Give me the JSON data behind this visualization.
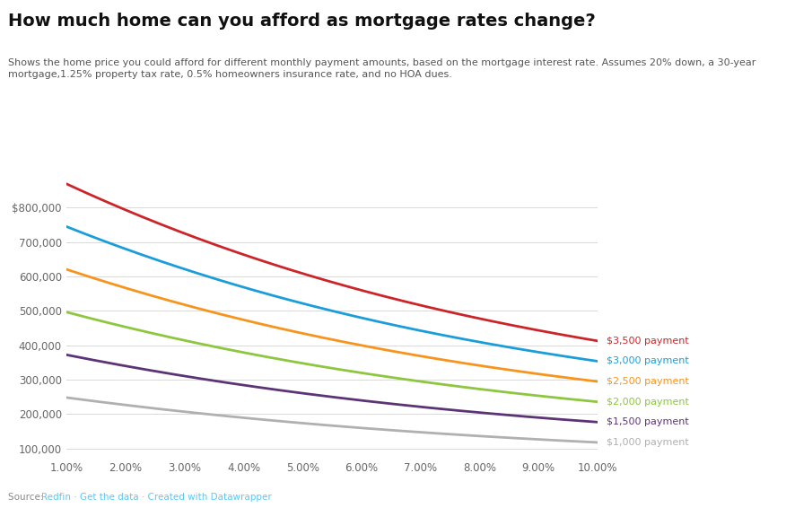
{
  "title": "How much home can you afford as mortgage rates change?",
  "subtitle": "Shows the home price you could afford for different monthly payment amounts, based on the mortgage interest rate. Assumes 20% down, a 30-year\nmortgage,1.25% property tax rate, 0.5% homeowners insurance rate, and no HOA dues.",
  "source_prefix": "Source: ",
  "source_link": "Redfin · Get the data · Created with Datawrapper",
  "source_color": "#5bc8f5",
  "rates": [
    1.0,
    2.0,
    3.0,
    4.0,
    5.0,
    6.0,
    7.0,
    8.0,
    9.0,
    10.0
  ],
  "payments": [
    1000,
    1500,
    2000,
    2500,
    3000,
    3500
  ],
  "series_colors": [
    "#b0b0b0",
    "#5c3475",
    "#8dc63f",
    "#f7941d",
    "#1b9dd9",
    "#cc2529"
  ],
  "series_labels": [
    "$1,000 payment",
    "$1,500 payment",
    "$2,000 payment",
    "$2,500 payment",
    "$3,000 payment",
    "$3,500 payment"
  ],
  "label_colors": [
    "#b0b0b0",
    "#5c3475",
    "#8dc63f",
    "#f7941d",
    "#1b9dd9",
    "#cc2529"
  ],
  "ytick_values": [
    100000,
    200000,
    300000,
    400000,
    500000,
    600000,
    700000,
    800000
  ],
  "ytick_labels": [
    "100,000",
    "200,000",
    "300,000",
    "400,000",
    "500,000",
    "600,000",
    "700,000",
    "$800,000"
  ],
  "ylim": [
    75000,
    960000
  ],
  "background_color": "#ffffff",
  "grid_color": "#d9d9d9",
  "title_fontsize": 14,
  "subtitle_fontsize": 8,
  "axis_fontsize": 8.5,
  "label_fontsize": 8,
  "line_width": 2.0
}
